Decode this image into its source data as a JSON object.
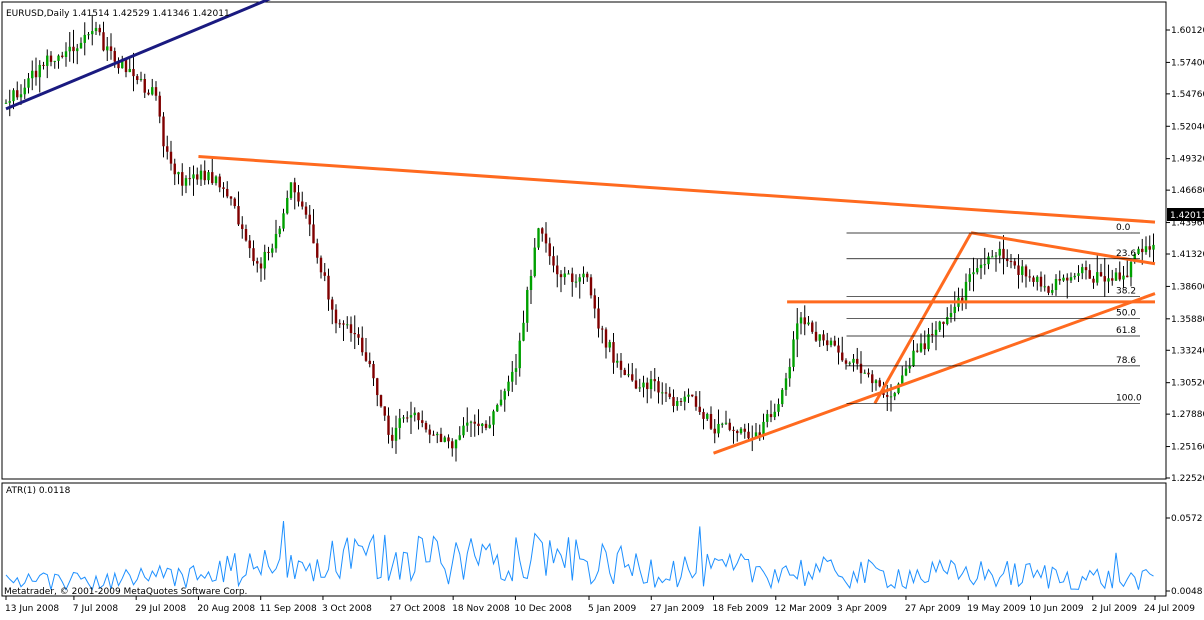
{
  "chart_data": [
    {
      "type": "candlestick",
      "title": "EURUSD,Daily  1.41514 1.42529 1.41346 1.42011",
      "symbol": "EURUSD",
      "timeframe": "Daily",
      "last_bar": {
        "open": 1.41514,
        "high": 1.42529,
        "low": 1.41346,
        "close": 1.42011
      },
      "current_price_label": "1.42011",
      "ylim": [
        1.2252,
        1.6012
      ],
      "y_ticks": [
        "1.60120",
        "1.57400",
        "1.54760",
        "1.52040",
        "1.49320",
        "1.46680",
        "1.43960",
        "1.41320",
        "1.38600",
        "1.35880",
        "1.33240",
        "1.30520",
        "1.27880",
        "1.25160",
        "1.22520"
      ],
      "y_tick_values": [
        1.6012,
        1.574,
        1.5476,
        1.5204,
        1.4932,
        1.4668,
        1.4396,
        1.4132,
        1.386,
        1.3588,
        1.3324,
        1.3052,
        1.2788,
        1.2516,
        1.2252
      ],
      "x_ticks": [
        "13 Jun 2008",
        "7 Jul 2008",
        "29 Jul 2008",
        "20 Aug 2008",
        "11 Sep 2008",
        "3 Oct 2008",
        "27 Oct 2008",
        "18 Nov 2008",
        "10 Dec 2008",
        "5 Jan 2009",
        "27 Jan 2009",
        "18 Feb 2009",
        "12 Mar 2009",
        "3 Apr 2009",
        "27 Apr 2009",
        "19 May 2009",
        "10 Jun 2009",
        "2 Jul 2009",
        "24 Jul 2009"
      ],
      "close_path": [
        {
          "date": "13 Jun 2008",
          "close": 1.54
        },
        {
          "date": "20 Jun 2008",
          "close": 1.555
        },
        {
          "date": "27 Jun 2008",
          "close": 1.575
        },
        {
          "date": "4 Jul 2008",
          "close": 1.585
        },
        {
          "date": "11 Jul 2008",
          "close": 1.595
        },
        {
          "date": "15 Jul 2008",
          "close": 1.598
        },
        {
          "date": "22 Jul 2008",
          "close": 1.575
        },
        {
          "date": "29 Jul 2008",
          "close": 1.56
        },
        {
          "date": "5 Aug 2008",
          "close": 1.545
        },
        {
          "date": "8 Aug 2008",
          "close": 1.5
        },
        {
          "date": "15 Aug 2008",
          "close": 1.47
        },
        {
          "date": "20 Aug 2008",
          "close": 1.48
        },
        {
          "date": "27 Aug 2008",
          "close": 1.475
        },
        {
          "date": "3 Sep 2008",
          "close": 1.445
        },
        {
          "date": "8 Sep 2008",
          "close": 1.41
        },
        {
          "date": "11 Sep 2008",
          "close": 1.405
        },
        {
          "date": "16 Sep 2008",
          "close": 1.425
        },
        {
          "date": "22 Sep 2008",
          "close": 1.475
        },
        {
          "date": "26 Sep 2008",
          "close": 1.455
        },
        {
          "date": "3 Oct 2008",
          "close": 1.395
        },
        {
          "date": "8 Oct 2008",
          "close": 1.355
        },
        {
          "date": "15 Oct 2008",
          "close": 1.345
        },
        {
          "date": "22 Oct 2008",
          "close": 1.3
        },
        {
          "date": "27 Oct 2008",
          "close": 1.255
        },
        {
          "date": "31 Oct 2008",
          "close": 1.28
        },
        {
          "date": "6 Nov 2008",
          "close": 1.275
        },
        {
          "date": "13 Nov 2008",
          "close": 1.26
        },
        {
          "date": "18 Nov 2008",
          "close": 1.255
        },
        {
          "date": "24 Nov 2008",
          "close": 1.275
        },
        {
          "date": "1 Dec 2008",
          "close": 1.27
        },
        {
          "date": "5 Dec 2008",
          "close": 1.29
        },
        {
          "date": "10 Dec 2008",
          "close": 1.32
        },
        {
          "date": "15 Dec 2008",
          "close": 1.39
        },
        {
          "date": "18 Dec 2008",
          "close": 1.44
        },
        {
          "date": "24 Dec 2008",
          "close": 1.395
        },
        {
          "date": "31 Dec 2008",
          "close": 1.395
        },
        {
          "date": "5 Jan 2009",
          "close": 1.39
        },
        {
          "date": "9 Jan 2009",
          "close": 1.35
        },
        {
          "date": "15 Jan 2009",
          "close": 1.32
        },
        {
          "date": "21 Jan 2009",
          "close": 1.3
        },
        {
          "date": "27 Jan 2009",
          "close": 1.305
        },
        {
          "date": "2 Feb 2009",
          "close": 1.29
        },
        {
          "date": "9 Feb 2009",
          "close": 1.29
        },
        {
          "date": "13 Feb 2009",
          "close": 1.285
        },
        {
          "date": "18 Feb 2009",
          "close": 1.265
        },
        {
          "date": "24 Feb 2009",
          "close": 1.27
        },
        {
          "date": "2 Mar 2009",
          "close": 1.26
        },
        {
          "date": "6 Mar 2009",
          "close": 1.265
        },
        {
          "date": "12 Mar 2009",
          "close": 1.285
        },
        {
          "date": "17 Mar 2009",
          "close": 1.32
        },
        {
          "date": "20 Mar 2009",
          "close": 1.365
        },
        {
          "date": "26 Mar 2009",
          "close": 1.345
        },
        {
          "date": "3 Apr 2009",
          "close": 1.33
        },
        {
          "date": "9 Apr 2009",
          "close": 1.32
        },
        {
          "date": "15 Apr 2009",
          "close": 1.31
        },
        {
          "date": "21 Apr 2009",
          "close": 1.295
        },
        {
          "date": "24 Apr 2009",
          "close": 1.305
        },
        {
          "date": "27 Apr 2009",
          "close": 1.32
        },
        {
          "date": "1 May 2009",
          "close": 1.33
        },
        {
          "date": "6 May 2009",
          "close": 1.345
        },
        {
          "date": "11 May 2009",
          "close": 1.36
        },
        {
          "date": "14 May 2009",
          "close": 1.365
        },
        {
          "date": "19 May 2009",
          "close": 1.39
        },
        {
          "date": "22 May 2009",
          "close": 1.4
        },
        {
          "date": "29 May 2009",
          "close": 1.415
        },
        {
          "date": "3 Jun 2009",
          "close": 1.405
        },
        {
          "date": "10 Jun 2009",
          "close": 1.395
        },
        {
          "date": "16 Jun 2009",
          "close": 1.385
        },
        {
          "date": "22 Jun 2009",
          "close": 1.39
        },
        {
          "date": "26 Jun 2009",
          "close": 1.4
        },
        {
          "date": "2 Jul 2009",
          "close": 1.395
        },
        {
          "date": "8 Jul 2009",
          "close": 1.39
        },
        {
          "date": "13 Jul 2009",
          "close": 1.395
        },
        {
          "date": "17 Jul 2009",
          "close": 1.41
        },
        {
          "date": "21 Jul 2009",
          "close": 1.42
        },
        {
          "date": "24 Jul 2009",
          "close": 1.42
        }
      ],
      "fibonacci": {
        "levels": [
          "0.0",
          "23.6",
          "38.2",
          "50.0",
          "61.8",
          "78.6",
          "100.0"
        ],
        "level_values": [
          1.4308,
          1.4092,
          1.3776,
          1.3591,
          1.3444,
          1.3193,
          1.2878
        ]
      },
      "trendlines": [
        {
          "color": "#1a1a80",
          "points": [
            [
              "13 Jun 2008",
              1.535
            ],
            [
              "5 Oct 2008",
              1.648
            ]
          ]
        },
        {
          "color": "#ff6a1f",
          "points": [
            [
              "20 Aug 2008",
              1.495
            ],
            [
              "24 Jul 2009",
              1.44
            ]
          ]
        },
        {
          "color": "#ff6a1f",
          "points": [
            [
              "18 Feb 2009",
              1.246
            ],
            [
              "24 Jul 2009",
              1.38
            ]
          ]
        },
        {
          "color": "#ff6a1f",
          "points": [
            [
              "16 Mar 2009",
              1.373
            ],
            [
              "24 Jul 2009",
              1.373
            ]
          ]
        },
        {
          "color": "#ff6a1f",
          "points": [
            [
              "20 May 2009",
              1.431
            ],
            [
              "24 Jul 2009",
              1.405
            ]
          ]
        },
        {
          "color": "#ff6a1f",
          "points": [
            [
              "16 Apr 2009",
              1.2878
            ],
            [
              "20 May 2009",
              1.4308
            ]
          ]
        }
      ]
    },
    {
      "type": "line",
      "title": "ATR(1) 0.0118",
      "indicator": "ATR(1)",
      "current_value": "0.0118",
      "ylim": [
        0.0048,
        0.0572
      ],
      "y_ticks": [
        "0.0572",
        "0.0048"
      ],
      "y_tick_values": [
        0.0572,
        0.0048
      ],
      "atr_profile": [
        {
          "date": "13 Jun 2008",
          "value": 0.01
        },
        {
          "date": "7 Jul 2008",
          "value": 0.012
        },
        {
          "date": "29 Jul 2008",
          "value": 0.013
        },
        {
          "date": "20 Aug 2008",
          "value": 0.016
        },
        {
          "date": "11 Sep 2008",
          "value": 0.022
        },
        {
          "date": "3 Oct 2008",
          "value": 0.024
        },
        {
          "date": "27 Oct 2008",
          "value": 0.03
        },
        {
          "date": "18 Nov 2008",
          "value": 0.026
        },
        {
          "date": "10 Dec 2008",
          "value": 0.034
        },
        {
          "date": "5 Jan 2009",
          "value": 0.024
        },
        {
          "date": "27 Jan 2009",
          "value": 0.021
        },
        {
          "date": "18 Feb 2009",
          "value": 0.019
        },
        {
          "date": "12 Mar 2009",
          "value": 0.02
        },
        {
          "date": "3 Apr 2009",
          "value": 0.017
        },
        {
          "date": "27 Apr 2009",
          "value": 0.016
        },
        {
          "date": "19 May 2009",
          "value": 0.017
        },
        {
          "date": "10 Jun 2009",
          "value": 0.016
        },
        {
          "date": "2 Jul 2009",
          "value": 0.014
        },
        {
          "date": "24 Jul 2009",
          "value": 0.012
        }
      ]
    }
  ],
  "footer": {
    "copyright": "Metatrader, © 2001-2009 MetaQuotes Software Corp."
  },
  "colors": {
    "bull": "#00a000",
    "bear": "#800000",
    "wick": "#000000",
    "atr": "#1e90ff",
    "trend_orange": "#ff6a1f",
    "trend_navy": "#1a1a80",
    "fib": "#000000",
    "price_tag_bg": "#000000"
  }
}
